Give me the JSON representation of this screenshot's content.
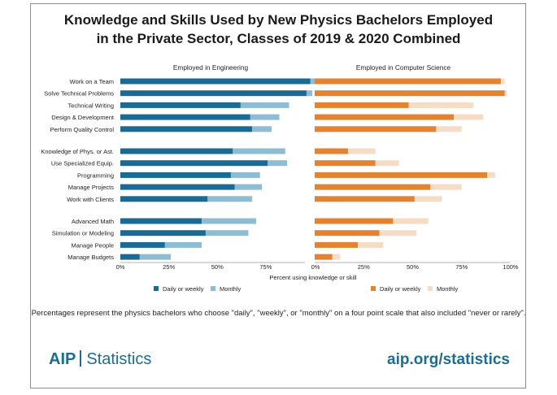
{
  "title_line1": "Knowledge and Skills Used by New Physics Bachelors Employed",
  "title_line2": "in the Private Sector, Classes of 2019 & 2020 Combined",
  "chart_data": [
    {
      "type": "bar",
      "orientation": "horizontal",
      "stacked": true,
      "title": "Employed in Engineering",
      "categories": [
        "Work on a Team",
        "Solve Technical Problems",
        "Technical Writing",
        "Design & Development",
        "Perform Quality Control",
        "Knowledge of Phys. or Ast.",
        "Use Specialized Equip.",
        "Programming",
        "Manage Projects",
        "Work with Clients",
        "Advanced Math",
        "Simulation or Modeling",
        "Manage People",
        "Manage Budgets"
      ],
      "series": [
        {
          "name": "Daily or weekly",
          "color": "#1b6a93",
          "values": [
            98,
            96,
            62,
            67,
            68,
            58,
            76,
            57,
            59,
            45,
            42,
            44,
            23,
            10
          ]
        },
        {
          "name": "Monthly",
          "color": "#8ebcd3",
          "values": [
            3,
            3,
            25,
            15,
            10,
            27,
            10,
            15,
            14,
            23,
            28,
            22,
            19,
            16
          ]
        }
      ],
      "xlim": [
        0,
        100
      ],
      "xticks": [
        "0%",
        "25%",
        "50%",
        "75%"
      ],
      "legend": {
        "labels": [
          "Daily or weekly",
          "Monthly"
        ],
        "position": "bottom"
      }
    },
    {
      "type": "bar",
      "orientation": "horizontal",
      "stacked": true,
      "title": "Employed in Computer Science",
      "categories": [
        "Work on a Team",
        "Solve Technical Problems",
        "Technical Writing",
        "Design & Development",
        "Perform Quality Control",
        "Knowledge of Phys. or Ast.",
        "Use Specialized Equip.",
        "Programming",
        "Manage Projects",
        "Work with Clients",
        "Advanced Math",
        "Simulation or Modeling",
        "Manage People",
        "Manage Budgets"
      ],
      "series": [
        {
          "name": "Daily or weekly",
          "color": "#e38230",
          "values": [
            95,
            97,
            48,
            71,
            62,
            17,
            31,
            88,
            59,
            51,
            40,
            33,
            22,
            9
          ]
        },
        {
          "name": "Monthly",
          "color": "#f5dcc5",
          "values": [
            2,
            1,
            33,
            15,
            13,
            14,
            12,
            4,
            16,
            14,
            18,
            19,
            13,
            4
          ]
        }
      ],
      "xlim": [
        0,
        100
      ],
      "xticks": [
        "0%",
        "25%",
        "50%",
        "75%",
        "100%"
      ],
      "legend": {
        "labels": [
          "Daily or weekly",
          "Monthly"
        ],
        "position": "bottom"
      }
    }
  ],
  "xlabel": "Percent using knowledge or skill",
  "footnote": "Percentages represent the physics bachelors who choose \"daily\", \"weekly\", or \"monthly\" on a four point scale that also included \"never or rarely\".",
  "brand": {
    "logo": "AIP",
    "sub": "Statistics",
    "url": "aip.org/statistics"
  }
}
